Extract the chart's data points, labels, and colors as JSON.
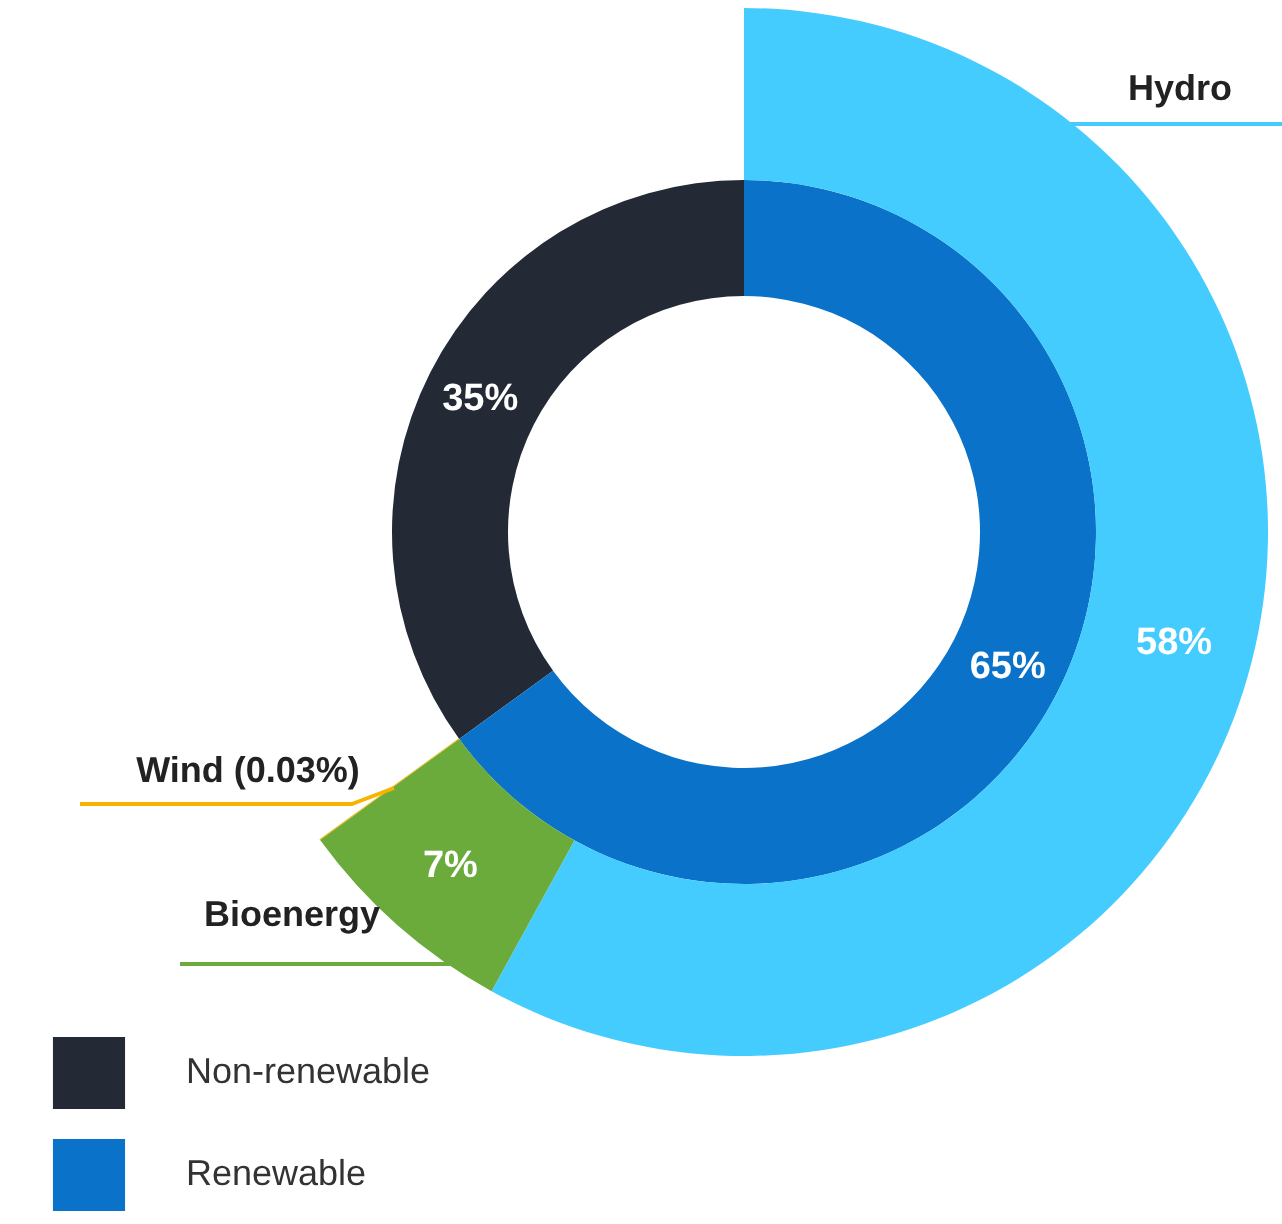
{
  "chart_data": [
    {
      "type": "donut",
      "categories": [
        "Non-renewable",
        "Renewable"
      ],
      "values": [
        35,
        65
      ],
      "colors": [
        "#232a36",
        "#0a72c8"
      ],
      "value_labels": [
        "35%",
        "65%"
      ],
      "legend": "bottom left"
    },
    {
      "type": "donut",
      "categories": [
        "Hydro",
        "Bioenergy",
        "Wind (0.03%)"
      ],
      "values": [
        58,
        7,
        0.03
      ],
      "colors": [
        "#45ccff",
        "#6aab3c",
        "#f4b400"
      ],
      "value_labels": [
        "58%",
        "7%",
        null
      ]
    }
  ]
}
